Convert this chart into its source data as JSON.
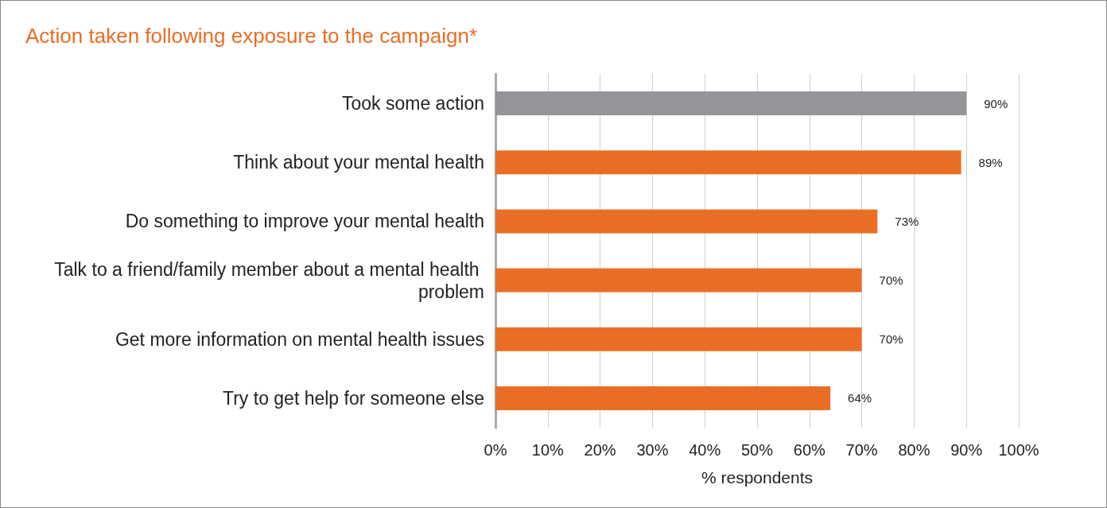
{
  "chart_data": {
    "type": "bar",
    "orientation": "horizontal",
    "title": "Action taken following exposure to the campaign*",
    "xlabel": "% respondents",
    "categories": [
      "Took some action",
      "Think about your mental health",
      "Do something to improve your mental health",
      "Talk to a friend/family member about a mental health problem",
      "Get more information on mental health issues",
      "Try to get help for someone else"
    ],
    "values": [
      90,
      89,
      73,
      70,
      70,
      64
    ],
    "colors": [
      "#939598",
      "#e96e24",
      "#e96e24",
      "#e96e24",
      "#e96e24",
      "#e96e24"
    ],
    "value_labels": [
      "90%",
      "89%",
      "73%",
      "70%",
      "70%",
      "64%"
    ],
    "xlim": [
      0,
      100
    ],
    "xticks": [
      {
        "value": 0,
        "label": "0%"
      },
      {
        "value": 10,
        "label": "10%"
      },
      {
        "value": 20,
        "label": "20%"
      },
      {
        "value": 30,
        "label": "30%"
      },
      {
        "value": 40,
        "label": "40%"
      },
      {
        "value": 50,
        "label": "50%"
      },
      {
        "value": 60,
        "label": "60%"
      },
      {
        "value": 70,
        "label": "70%"
      },
      {
        "value": 80,
        "label": "80%"
      },
      {
        "value": 90,
        "label": "90%"
      },
      {
        "value": 100,
        "label": "100%"
      }
    ],
    "grid": "x"
  }
}
